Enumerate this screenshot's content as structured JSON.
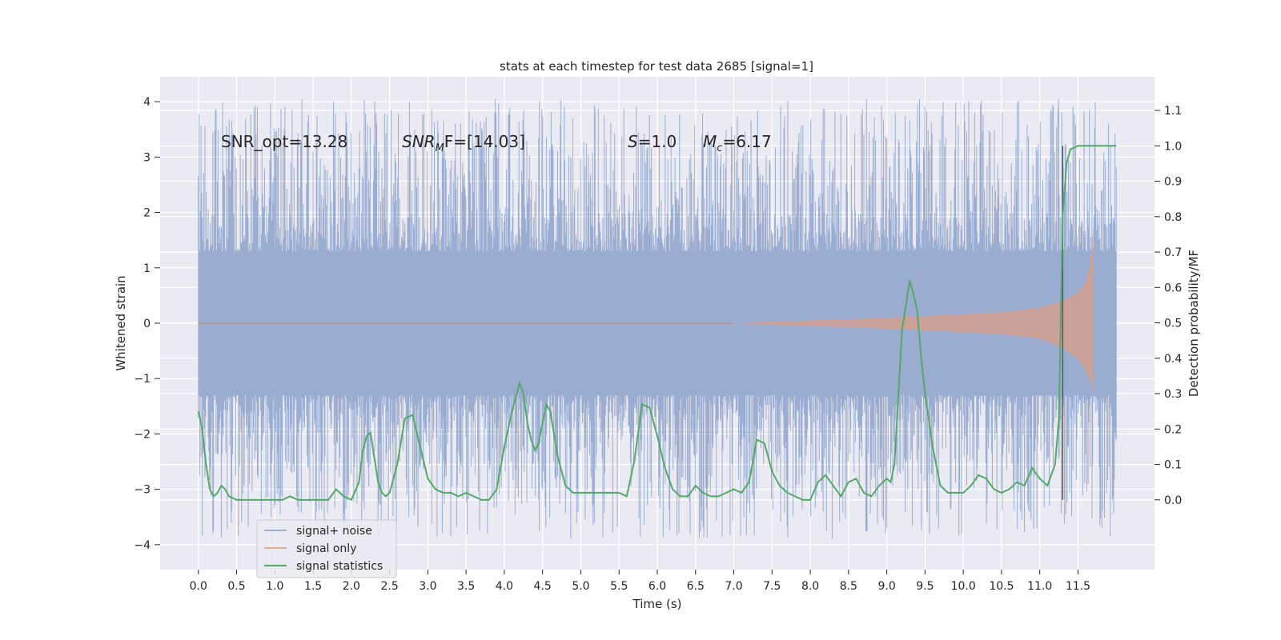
{
  "chart_data": {
    "type": "line",
    "title": "stats at each timestep for test data 2685 [signal=1]",
    "xlabel": "Time (s)",
    "ylabel": "Whitened strain",
    "y2label": "Detection probability/MF",
    "xlim": [
      -0.5,
      12.5
    ],
    "ylim": [
      -4.45,
      4.45
    ],
    "y2lim": [
      -0.197,
      1.195
    ],
    "grid": true,
    "legend_position": "lower-left",
    "x_ticks": [
      0.0,
      0.5,
      1.0,
      1.5,
      2.0,
      2.5,
      3.0,
      3.5,
      4.0,
      4.5,
      5.0,
      5.5,
      6.0,
      6.5,
      7.0,
      7.5,
      8.0,
      8.5,
      9.0,
      9.5,
      10.0,
      10.5,
      11.0,
      11.5
    ],
    "x_tick_labels": [
      "0.0",
      "0.5",
      "1.0",
      "1.5",
      "2.0",
      "2.5",
      "3.0",
      "3.5",
      "4.0",
      "4.5",
      "5.0",
      "5.5",
      "6.0",
      "6.5",
      "7.0",
      "7.5",
      "8.0",
      "8.5",
      "9.0",
      "9.5",
      "10.0",
      "10.5",
      "11.0",
      "11.5"
    ],
    "y_ticks": [
      4,
      3,
      2,
      1,
      0,
      -1,
      -2,
      -3,
      -4
    ],
    "y_tick_labels": [
      "4",
      "3",
      "2",
      "1",
      "0",
      "−1",
      "−2",
      "−3",
      "−4"
    ],
    "y2_ticks": [
      1.1,
      1.0,
      0.9,
      0.8,
      0.7,
      0.6,
      0.5,
      0.4,
      0.3,
      0.2,
      0.1,
      0.0
    ],
    "y2_tick_labels": [
      "1.1",
      "1.0",
      "0.9",
      "0.8",
      "0.7",
      "0.6",
      "0.5",
      "0.4",
      "0.3",
      "0.2",
      "0.1",
      "0.0"
    ],
    "annotations": {
      "snr_opt": "SNR_opt=13.28",
      "snr_mf_name": "SNR",
      "snr_mf_sub": "M",
      "snr_mf_tail": "F=[14.03]",
      "s_name": "S",
      "s_value": "=1.0",
      "mc_name": "M",
      "mc_sub": "c",
      "mc_value": "=6.17"
    },
    "noise_band": {
      "x_start": 0.0,
      "x_end": 12.0,
      "core_min": -1.3,
      "core_max": 1.3,
      "spike_peak_max": 4.05,
      "spike_peak_min": -3.9
    },
    "signal_envelope": [
      [
        7.0,
        0.0
      ],
      [
        7.5,
        0.03
      ],
      [
        8.0,
        0.05
      ],
      [
        8.5,
        0.07
      ],
      [
        9.0,
        0.1
      ],
      [
        9.5,
        0.13
      ],
      [
        10.0,
        0.16
      ],
      [
        10.5,
        0.2
      ],
      [
        11.0,
        0.28
      ],
      [
        11.3,
        0.4
      ],
      [
        11.5,
        0.55
      ],
      [
        11.6,
        0.75
      ],
      [
        11.65,
        1.0
      ],
      [
        11.68,
        1.3
      ],
      [
        11.7,
        1.75
      ]
    ],
    "signal_envelope_lower": [
      [
        7.0,
        0.0
      ],
      [
        7.5,
        -0.03
      ],
      [
        8.0,
        -0.05
      ],
      [
        8.5,
        -0.07
      ],
      [
        9.0,
        -0.1
      ],
      [
        9.5,
        -0.13
      ],
      [
        10.0,
        -0.16
      ],
      [
        10.5,
        -0.2
      ],
      [
        11.0,
        -0.28
      ],
      [
        11.3,
        -0.45
      ],
      [
        11.5,
        -0.65
      ],
      [
        11.6,
        -0.85
      ],
      [
        11.65,
        -1.0
      ],
      [
        11.68,
        -1.15
      ],
      [
        11.7,
        -1.3
      ]
    ],
    "series": [
      {
        "name": "signal+ noise",
        "color": "#4c72b0"
      },
      {
        "name": "signal only",
        "color": "#dd8452"
      },
      {
        "name": "signal statistics",
        "color": "#55a868",
        "axis": "right",
        "x": [
          0.0,
          0.05,
          0.1,
          0.15,
          0.2,
          0.25,
          0.3,
          0.35,
          0.4,
          0.5,
          0.6,
          0.8,
          1.0,
          1.1,
          1.2,
          1.3,
          1.4,
          1.5,
          1.6,
          1.7,
          1.8,
          1.9,
          2.0,
          2.1,
          2.15,
          2.2,
          2.25,
          2.3,
          2.35,
          2.4,
          2.45,
          2.5,
          2.6,
          2.7,
          2.8,
          2.9,
          3.0,
          3.1,
          3.2,
          3.3,
          3.4,
          3.5,
          3.6,
          3.7,
          3.8,
          3.9,
          4.0,
          4.1,
          4.2,
          4.25,
          4.3,
          4.35,
          4.4,
          4.45,
          4.5,
          4.55,
          4.6,
          4.7,
          4.8,
          4.9,
          5.0,
          5.1,
          5.2,
          5.3,
          5.4,
          5.5,
          5.6,
          5.7,
          5.8,
          5.9,
          6.0,
          6.1,
          6.2,
          6.3,
          6.4,
          6.5,
          6.6,
          6.7,
          6.8,
          6.9,
          7.0,
          7.1,
          7.2,
          7.3,
          7.4,
          7.5,
          7.6,
          7.7,
          7.8,
          7.9,
          8.0,
          8.1,
          8.2,
          8.3,
          8.4,
          8.5,
          8.6,
          8.7,
          8.8,
          8.9,
          9.0,
          9.05,
          9.1,
          9.2,
          9.3,
          9.35,
          9.4,
          9.45,
          9.5,
          9.6,
          9.7,
          9.8,
          9.9,
          10.0,
          10.1,
          10.2,
          10.3,
          10.4,
          10.5,
          10.6,
          10.7,
          10.8,
          10.9,
          11.0,
          11.1,
          11.2,
          11.25,
          11.3,
          11.35,
          11.4,
          11.5,
          11.6,
          12.0
        ],
        "y": [
          0.25,
          0.2,
          0.1,
          0.03,
          0.01,
          0.02,
          0.04,
          0.03,
          0.01,
          0.0,
          0.0,
          0.0,
          0.0,
          0.0,
          0.01,
          0.0,
          0.0,
          0.0,
          0.0,
          0.0,
          0.03,
          0.01,
          0.0,
          0.05,
          0.14,
          0.18,
          0.19,
          0.12,
          0.05,
          0.02,
          0.01,
          0.02,
          0.1,
          0.23,
          0.24,
          0.15,
          0.06,
          0.03,
          0.02,
          0.02,
          0.01,
          0.02,
          0.01,
          0.0,
          0.0,
          0.03,
          0.15,
          0.25,
          0.33,
          0.3,
          0.22,
          0.17,
          0.14,
          0.16,
          0.22,
          0.27,
          0.25,
          0.12,
          0.04,
          0.02,
          0.02,
          0.02,
          0.02,
          0.02,
          0.02,
          0.02,
          0.01,
          0.11,
          0.27,
          0.26,
          0.18,
          0.09,
          0.03,
          0.01,
          0.01,
          0.04,
          0.02,
          0.01,
          0.01,
          0.02,
          0.03,
          0.02,
          0.05,
          0.17,
          0.16,
          0.08,
          0.04,
          0.02,
          0.01,
          0.0,
          0.0,
          0.05,
          0.07,
          0.04,
          0.01,
          0.05,
          0.06,
          0.02,
          0.01,
          0.04,
          0.06,
          0.05,
          0.1,
          0.48,
          0.62,
          0.58,
          0.53,
          0.4,
          0.3,
          0.15,
          0.04,
          0.02,
          0.02,
          0.02,
          0.04,
          0.07,
          0.06,
          0.03,
          0.02,
          0.03,
          0.05,
          0.04,
          0.09,
          0.06,
          0.04,
          0.1,
          0.23,
          0.8,
          0.95,
          0.99,
          1.0,
          1.0,
          1.0
        ]
      }
    ],
    "vline_x": 11.3
  },
  "legend": {
    "items": [
      {
        "label": "signal+ noise",
        "color": "#4c72b0"
      },
      {
        "label": "signal only",
        "color": "#dd8452"
      },
      {
        "label": "signal statistics",
        "color": "#55a868"
      }
    ]
  }
}
